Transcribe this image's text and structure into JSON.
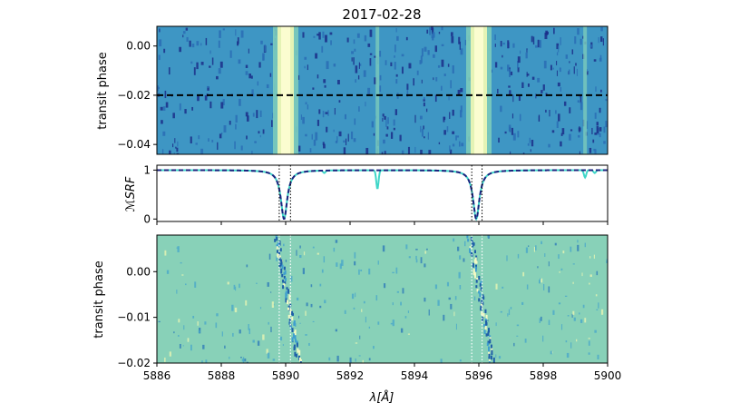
{
  "chart_data": [
    {
      "type": "heatmap",
      "title": "2017-02-28",
      "ylabel": "transit phase",
      "xlim": [
        5886,
        5900
      ],
      "ylim": [
        -0.044,
        0.008
      ],
      "yticks": [
        0.0,
        -0.02,
        -0.04
      ],
      "ytick_labels": [
        "0.00",
        "−0.02",
        "−0.04"
      ],
      "bright_bands_x": [
        5890.0,
        5896.0
      ],
      "faint_band_x": [
        5892.85,
        5899.3
      ],
      "dashed_line_y": -0.02,
      "colormap": [
        "#1b2f8a",
        "#2a6db5",
        "#3e96c4",
        "#7ccbbb",
        "#e4f3b5",
        "#fbfdd0"
      ]
    },
    {
      "type": "line",
      "ylabel": "ℳSRF",
      "xlim": [
        5886,
        5900
      ],
      "ylim": [
        -0.05,
        1.1
      ],
      "yticks": [
        0,
        1
      ],
      "ytick_labels": [
        "0",
        "1"
      ],
      "line_centers": [
        5889.95,
        5895.92
      ],
      "line_width": 0.12,
      "dotted_vlines_x": [
        5889.8,
        5890.15,
        5895.78,
        5896.1
      ],
      "series": [
        {
          "color": "#3fd6c8",
          "style": "solid"
        },
        {
          "color": "#1a237e",
          "style": "dashed"
        }
      ],
      "extra_absorption_x": [
        5891.2,
        5892.85,
        5899.3,
        5899.6
      ],
      "extra_absorption_depth": [
        0.05,
        0.38,
        0.15,
        0.06
      ]
    },
    {
      "type": "heatmap",
      "ylabel": "transit phase",
      "xlabel": "λ[Å]",
      "xlim": [
        5886,
        5900
      ],
      "ylim": [
        -0.02,
        0.008
      ],
      "yticks": [
        0.0,
        -0.01,
        -0.02
      ],
      "ytick_labels": [
        "0.00",
        "−0.01",
        "−0.02"
      ],
      "xticks": [
        5886,
        5888,
        5890,
        5892,
        5894,
        5896,
        5898,
        5900
      ],
      "xtick_labels": [
        "5886",
        "5888",
        "5890",
        "5892",
        "5894",
        "5896",
        "5898",
        "5900"
      ],
      "background_color": "#88d1b8",
      "dotted_vlines_x": [
        5889.8,
        5890.15,
        5895.78,
        5896.1
      ],
      "trail_start_x": [
        5889.7,
        5895.7
      ],
      "trail_end_x": [
        5890.4,
        5896.4
      ]
    }
  ]
}
